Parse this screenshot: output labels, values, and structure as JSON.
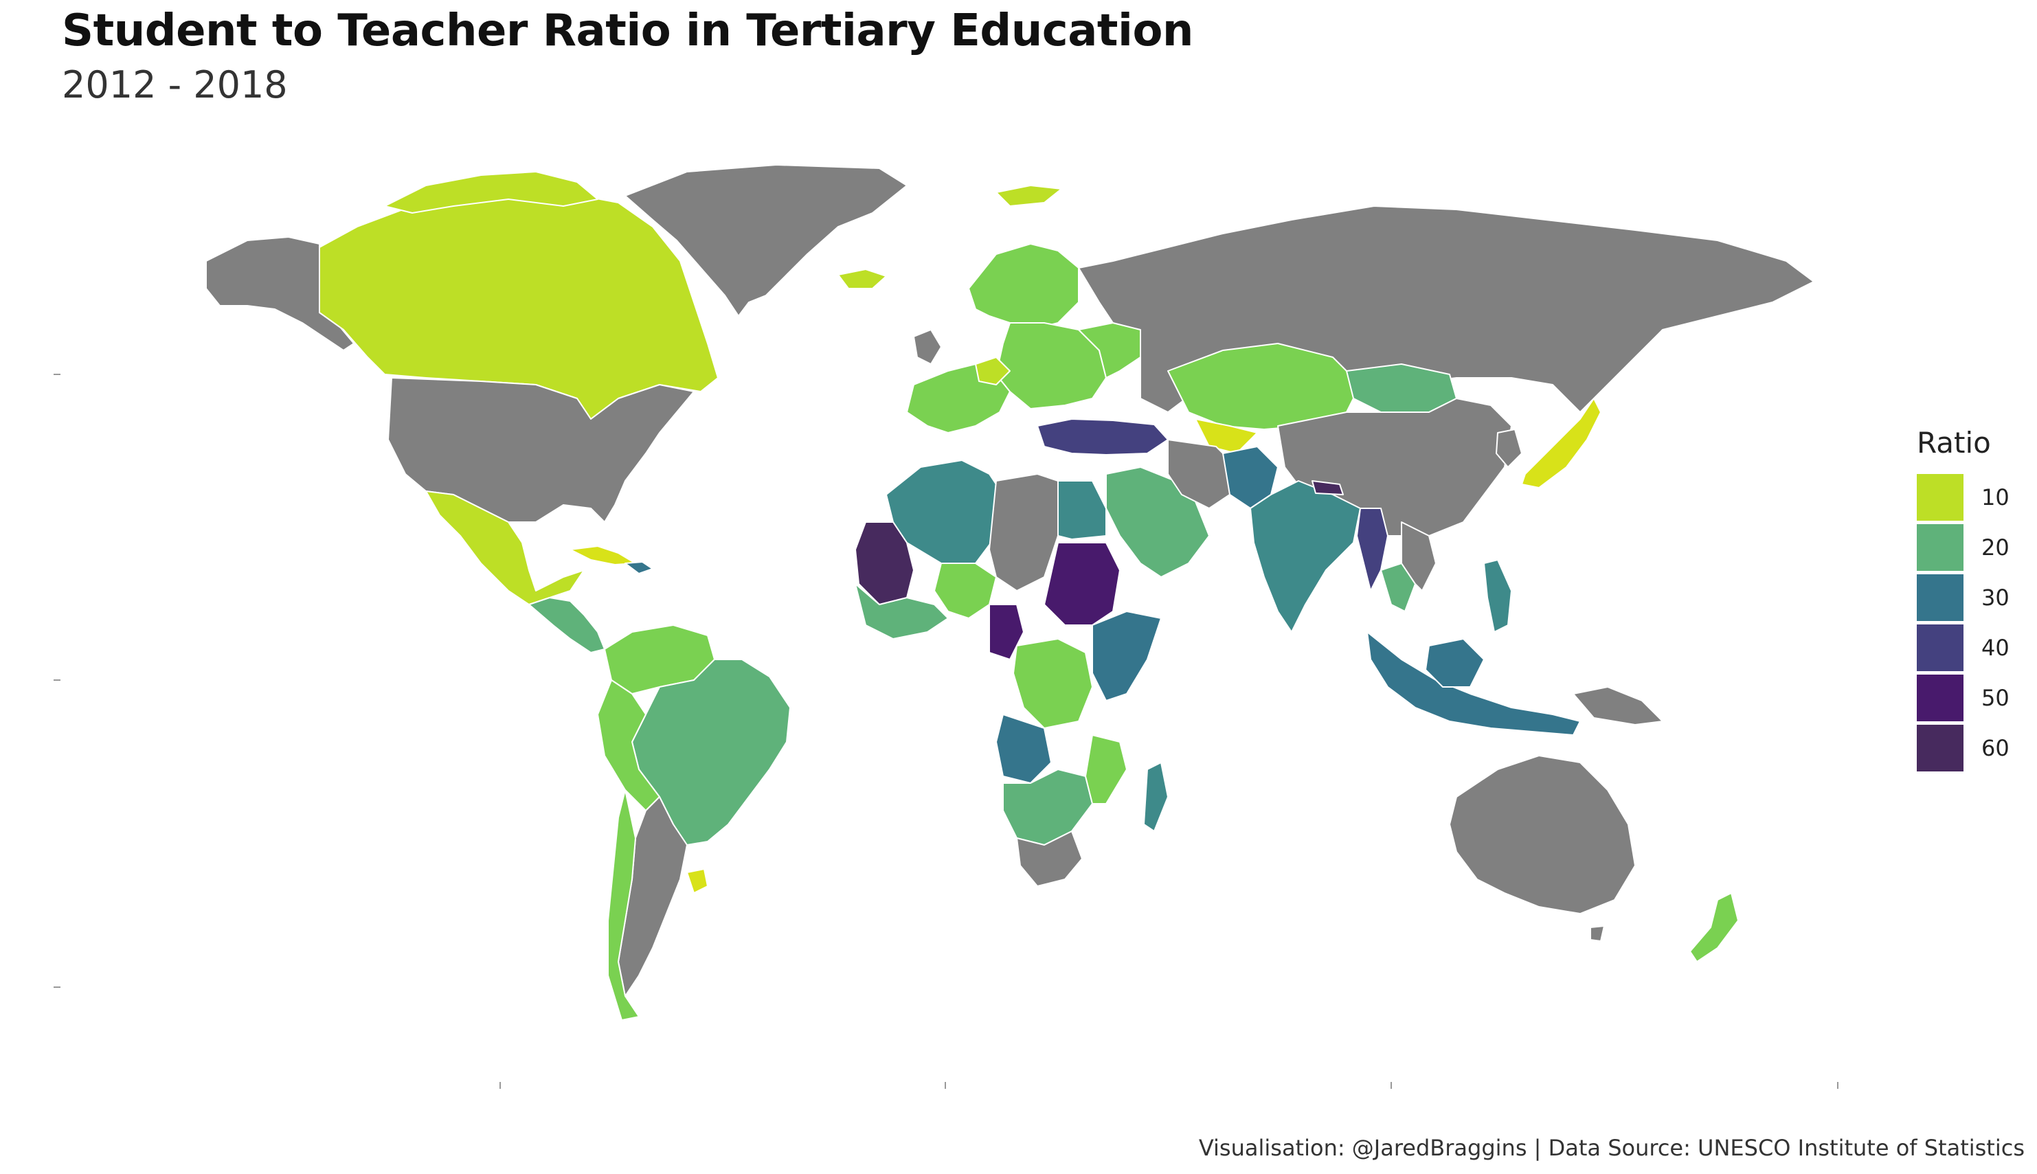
{
  "header": {
    "title": "Student to Teacher Ratio in Tertiary Education",
    "subtitle": "2012 - 2018"
  },
  "legend": {
    "title": "Ratio",
    "items": [
      {
        "label": "10",
        "color": "#bddf26"
      },
      {
        "label": "20",
        "color": "#5fb27a"
      },
      {
        "label": "30",
        "color": "#35758c"
      },
      {
        "label": "40",
        "color": "#44417f"
      },
      {
        "label": "50",
        "color": "#481a6c"
      },
      {
        "label": "60",
        "color": "#472a5e"
      }
    ]
  },
  "map": {
    "no_data_color": "#808080",
    "colored_regions": [
      {
        "region": "canada",
        "ratio": 10
      },
      {
        "region": "greenland-north-islands",
        "ratio": 10
      },
      {
        "region": "mexico",
        "ratio": 12
      },
      {
        "region": "central-america",
        "ratio": 20
      },
      {
        "region": "cuba",
        "ratio": 8
      },
      {
        "region": "brazil",
        "ratio": 20
      },
      {
        "region": "colombia-venezuela",
        "ratio": 15
      },
      {
        "region": "andean-west",
        "ratio": 16
      },
      {
        "region": "chile",
        "ratio": 15
      },
      {
        "region": "uruguay",
        "ratio": 10
      },
      {
        "region": "western-europe",
        "ratio": 14
      },
      {
        "region": "scandinavia",
        "ratio": 13
      },
      {
        "region": "eastern-europe",
        "ratio": 15
      },
      {
        "region": "turkey",
        "ratio": 40
      },
      {
        "region": "north-africa-west",
        "ratio": 28
      },
      {
        "region": "egypt",
        "ratio": 25
      },
      {
        "region": "mauritania-mali",
        "ratio": 48
      },
      {
        "region": "west-africa-coast",
        "ratio": 18
      },
      {
        "region": "niger-nigeria",
        "ratio": 14
      },
      {
        "region": "sudan",
        "ratio": 52
      },
      {
        "region": "central-african",
        "ratio": 55
      },
      {
        "region": "east-africa",
        "ratio": 35
      },
      {
        "region": "dr-congo",
        "ratio": 14
      },
      {
        "region": "angola",
        "ratio": 30
      },
      {
        "region": "southern-africa",
        "ratio": 18
      },
      {
        "region": "mozambique",
        "ratio": 14
      },
      {
        "region": "madagascar",
        "ratio": 25
      },
      {
        "region": "saudi-arabia",
        "ratio": 20
      },
      {
        "region": "kazakhstan-central-asia",
        "ratio": 14
      },
      {
        "region": "uzbekistan",
        "ratio": 10
      },
      {
        "region": "mongolia",
        "ratio": 20
      },
      {
        "region": "pakistan",
        "ratio": 33
      },
      {
        "region": "india",
        "ratio": 25
      },
      {
        "region": "nepal",
        "ratio": 58
      },
      {
        "region": "myanmar",
        "ratio": 45
      },
      {
        "region": "thailand",
        "ratio": 22
      },
      {
        "region": "indonesia",
        "ratio": 30
      },
      {
        "region": "philippines",
        "ratio": 28
      },
      {
        "region": "japan",
        "ratio": 9
      },
      {
        "region": "new-zealand",
        "ratio": 17
      }
    ]
  },
  "footer": {
    "caption": "Visualisation: @JaredBraggins | Data Source: UNESCO Institute of Statistics"
  }
}
